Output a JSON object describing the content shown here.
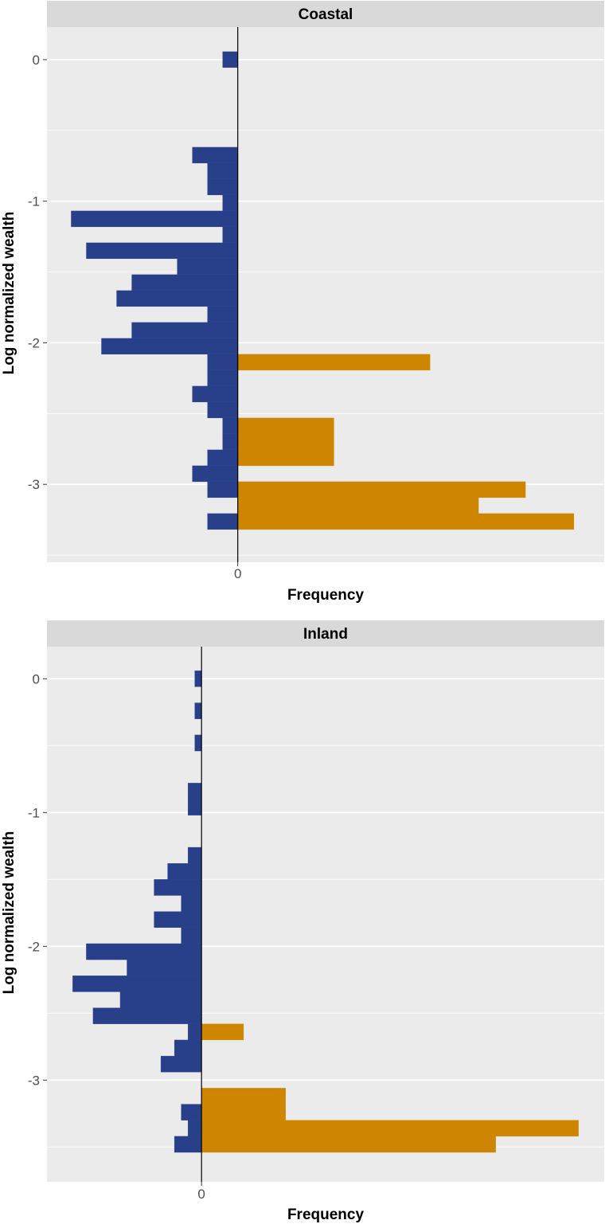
{
  "colors": {
    "blue": "#283F8A",
    "orange": "#CE8600",
    "panel_bg": "#EBEBEB",
    "strip_bg": "#D9D9D9",
    "gridline": "#FFFFFF",
    "axis_text": "#4D4D4D",
    "title_text": "#000000"
  },
  "chart_data": [
    {
      "type": "bar",
      "orientation": "horizontal-back-to-back",
      "panel_title": "Coastal",
      "xlabel": "Frequency",
      "ylabel": "Log normalized wealth",
      "x_tick_labels": [
        "0"
      ],
      "y_ticks": [
        0,
        -1,
        -2,
        -3
      ],
      "y_tick_labels": [
        "0",
        "-1",
        "-2",
        "-3"
      ],
      "ylim": [
        -3.55,
        0.23
      ],
      "xlim": [
        -12.6,
        24.2
      ],
      "bin_width": 0.1125,
      "series": [
        {
          "name": "left (blue)",
          "color_key": "blue",
          "bins": [
            {
              "y": 0.0,
              "count": 1
            },
            {
              "y": -0.675,
              "count": 3
            },
            {
              "y": -0.7875,
              "count": 2
            },
            {
              "y": -0.9,
              "count": 2
            },
            {
              "y": -1.0125,
              "count": 1
            },
            {
              "y": -1.125,
              "count": 11
            },
            {
              "y": -1.2375,
              "count": 1
            },
            {
              "y": -1.35,
              "count": 10
            },
            {
              "y": -1.4625,
              "count": 4
            },
            {
              "y": -1.575,
              "count": 7
            },
            {
              "y": -1.6875,
              "count": 8
            },
            {
              "y": -1.8,
              "count": 2
            },
            {
              "y": -1.9125,
              "count": 7
            },
            {
              "y": -2.025,
              "count": 9
            },
            {
              "y": -2.1375,
              "count": 2
            },
            {
              "y": -2.25,
              "count": 2
            },
            {
              "y": -2.3625,
              "count": 3
            },
            {
              "y": -2.475,
              "count": 2
            },
            {
              "y": -2.5875,
              "count": 1
            },
            {
              "y": -2.7,
              "count": 1
            },
            {
              "y": -2.8125,
              "count": 2
            },
            {
              "y": -2.925,
              "count": 3
            },
            {
              "y": -3.0375,
              "count": 2
            },
            {
              "y": -3.2625,
              "count": 2
            }
          ]
        },
        {
          "name": "right (orange)",
          "color_key": "orange",
          "bins": [
            {
              "y": -2.1375,
              "count": 12.7
            },
            {
              "y": -2.5875,
              "count": 6.35
            },
            {
              "y": -2.7,
              "count": 6.35
            },
            {
              "y": -2.8125,
              "count": 6.35
            },
            {
              "y": -3.0375,
              "count": 19
            },
            {
              "y": -3.15,
              "count": 15.9
            },
            {
              "y": -3.2625,
              "count": 22.2
            }
          ]
        }
      ]
    },
    {
      "type": "bar",
      "orientation": "horizontal-back-to-back",
      "panel_title": "Inland",
      "xlabel": "Frequency",
      "ylabel": "Log normalized wealth",
      "x_tick_labels": [
        "0"
      ],
      "y_ticks": [
        0,
        -1,
        -2,
        -3
      ],
      "y_tick_labels": [
        "0",
        "-1",
        "-2",
        "-3"
      ],
      "ylim": [
        -3.76,
        0.24
      ],
      "xlim": [
        -11.4,
        29.7
      ],
      "bin_width": 0.12,
      "series": [
        {
          "name": "left (blue)",
          "color_key": "blue",
          "bins": [
            {
              "y": 0.0,
              "count": 0.5
            },
            {
              "y": -0.24,
              "count": 0.5
            },
            {
              "y": -0.48,
              "count": 0.5
            },
            {
              "y": -0.84,
              "count": 1
            },
            {
              "y": -0.96,
              "count": 1
            },
            {
              "y": -1.32,
              "count": 1
            },
            {
              "y": -1.44,
              "count": 2.5
            },
            {
              "y": -1.56,
              "count": 3.5
            },
            {
              "y": -1.68,
              "count": 1.5
            },
            {
              "y": -1.8,
              "count": 3.5
            },
            {
              "y": -1.92,
              "count": 1.5
            },
            {
              "y": -2.04,
              "count": 8.5
            },
            {
              "y": -2.16,
              "count": 5.5
            },
            {
              "y": -2.28,
              "count": 9.5
            },
            {
              "y": -2.4,
              "count": 6
            },
            {
              "y": -2.52,
              "count": 8
            },
            {
              "y": -2.64,
              "count": 1
            },
            {
              "y": -2.76,
              "count": 2
            },
            {
              "y": -2.88,
              "count": 3
            },
            {
              "y": -3.24,
              "count": 1.5
            },
            {
              "y": -3.36,
              "count": 1
            },
            {
              "y": -3.48,
              "count": 2
            }
          ]
        },
        {
          "name": "right (orange)",
          "color_key": "orange",
          "bins": [
            {
              "y": -2.64,
              "count": 3.1
            },
            {
              "y": -3.12,
              "count": 6.2
            },
            {
              "y": -3.24,
              "count": 6.2
            },
            {
              "y": -3.36,
              "count": 27.8
            },
            {
              "y": -3.48,
              "count": 21.7
            }
          ]
        }
      ]
    }
  ]
}
